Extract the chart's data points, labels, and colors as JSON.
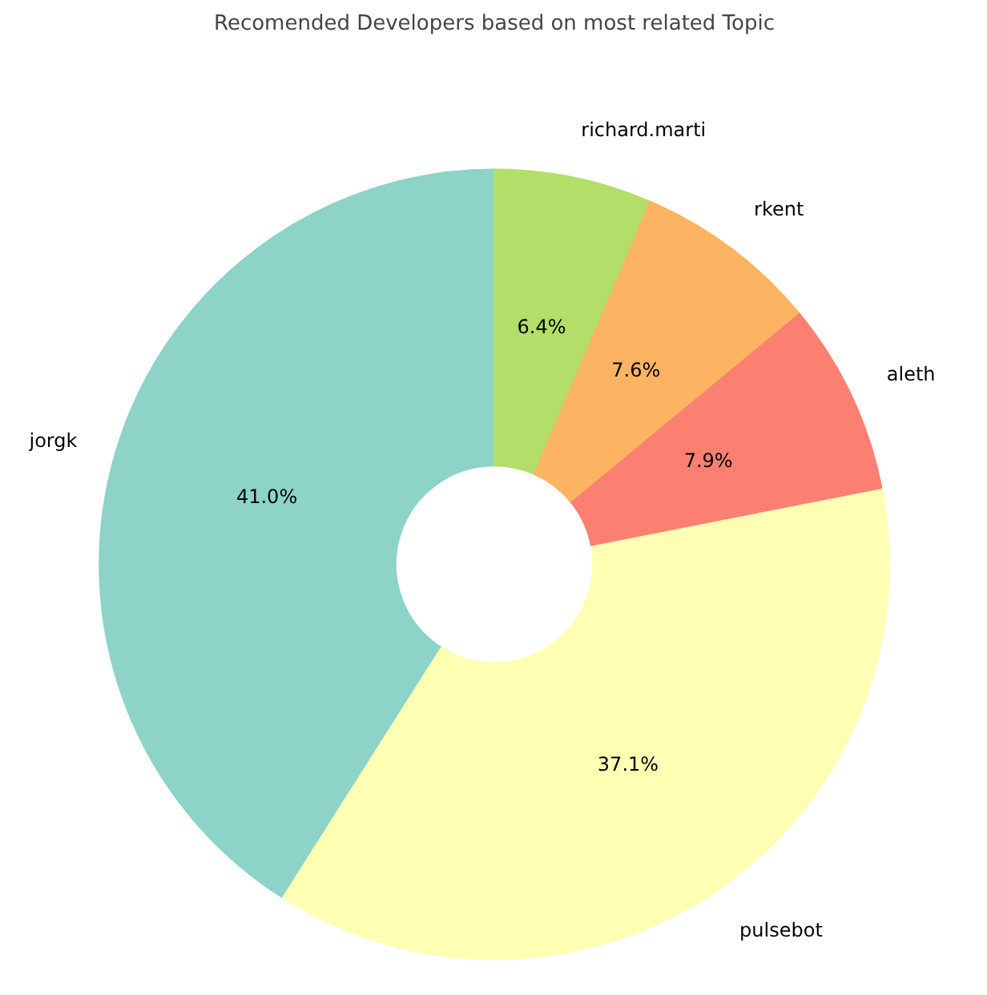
{
  "chart_data": {
    "type": "donut",
    "title": "Recomended Developers based on most related Topic",
    "categories": [
      "jorgk",
      "pulsebot",
      "aleth",
      "rkent",
      "richard.marti"
    ],
    "values": [
      41.0,
      37.1,
      7.9,
      7.6,
      6.4
    ],
    "colors": [
      "#8dd3c7",
      "#ffffb3",
      "#fb8072",
      "#fdb462",
      "#b3de69"
    ],
    "value_labels": [
      "41.0%",
      "37.1%",
      "7.9%",
      "7.6%",
      "6.4%"
    ]
  }
}
